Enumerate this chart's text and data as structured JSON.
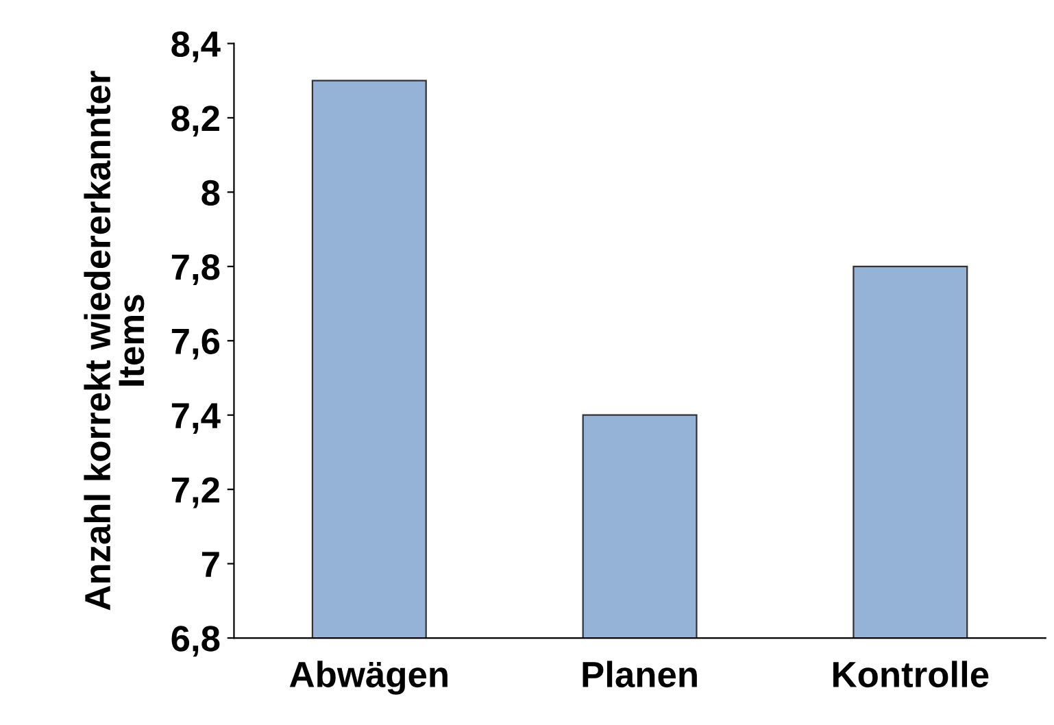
{
  "chart_data": {
    "type": "bar",
    "ylabel": "Anzahl korrekt wiedererkannter\nItems",
    "categories": [
      "Abwägen",
      "Planen",
      "Kontrolle"
    ],
    "values": [
      8.3,
      7.4,
      7.8
    ],
    "color": "#95b3d7",
    "ylim": [
      6.8,
      8.4
    ],
    "yticks": [
      {
        "value": 6.8,
        "label": "6,8"
      },
      {
        "value": 7,
        "label": "7"
      },
      {
        "value": 7.2,
        "label": "7,2"
      },
      {
        "value": 7.4,
        "label": "7,4"
      },
      {
        "value": 7.6,
        "label": "7,6"
      },
      {
        "value": 7.8,
        "label": "7,8"
      },
      {
        "value": 8,
        "label": "8"
      },
      {
        "value": 8.2,
        "label": "8,2"
      },
      {
        "value": 8.4,
        "label": "8,4"
      }
    ],
    "grid": false
  }
}
